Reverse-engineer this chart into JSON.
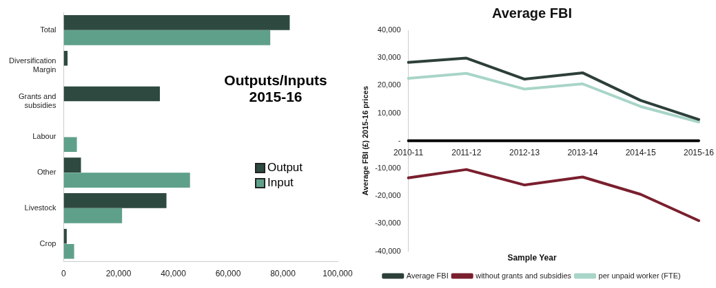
{
  "chart_data": [
    {
      "type": "bar",
      "orientation": "horizontal",
      "title": "Outputs/Inputs 2015-16",
      "categories": [
        "Total",
        "Diversification Margin",
        "Grants and subsidies",
        "Labour",
        "Other",
        "Livestock",
        "Crop"
      ],
      "series": [
        {
          "name": "Output",
          "color": "#2e4a40",
          "values": [
            82500,
            1400,
            35100,
            null,
            6300,
            37500,
            1100
          ]
        },
        {
          "name": "Input",
          "color": "#5fa08a",
          "values": [
            75400,
            null,
            null,
            4800,
            46100,
            21300,
            3800
          ]
        }
      ],
      "xlim": [
        0,
        100000
      ],
      "xticks": [
        0,
        {
          "value": 20000,
          "label": "20,000"
        },
        {
          "value": 40000,
          "label": "40,000"
        },
        {
          "value": 60000,
          "label": "60,000"
        },
        {
          "value": 80000,
          "label": "80,000"
        },
        {
          "value": 100000,
          "label": "100,000"
        }
      ],
      "grid": false,
      "legend": "right"
    },
    {
      "type": "line",
      "title": "Average FBI",
      "ylabel": "Average FBI (£) 2015-16 prices",
      "xlabel": "Sample Year",
      "categories": [
        "2010-11",
        "2011-12",
        "2012-13",
        "2013-14",
        "2014-15",
        "2015-16"
      ],
      "series": [
        {
          "name": "Average FBI",
          "color": "#2d3f39",
          "values": [
            28400,
            29900,
            22300,
            24600,
            14600,
            7700
          ]
        },
        {
          "name": "without grants and subsidies",
          "color": "#7a1f2e",
          "values": [
            -13400,
            -10400,
            -16000,
            -13100,
            -19400,
            -28900
          ]
        },
        {
          "name": "per unpaid worker (FTE)",
          "color": "#a8d5c8",
          "values": [
            22600,
            24400,
            18700,
            20600,
            12400,
            6800
          ]
        },
        {
          "color": "#000000",
          "values": [
            0,
            0,
            0,
            0,
            0,
            0
          ]
        }
      ],
      "ylim": [
        -40000,
        40000
      ],
      "yticks": [
        {
          "value": -40000,
          "label": "-40,000"
        },
        {
          "value": -30000,
          "label": "-30,000"
        },
        {
          "value": -20000,
          "label": "-20,000"
        },
        {
          "value": -10000,
          "label": "-10,000"
        },
        {
          "value": 0,
          "label": "-"
        },
        {
          "value": 10000,
          "label": "10,000"
        },
        {
          "value": 20000,
          "label": "20,000"
        },
        {
          "value": 30000,
          "label": "30,000"
        },
        {
          "value": 40000,
          "label": "40,000"
        }
      ],
      "grid": false,
      "legend": "bottom",
      "marker": "none",
      "line_style": "solid"
    }
  ]
}
